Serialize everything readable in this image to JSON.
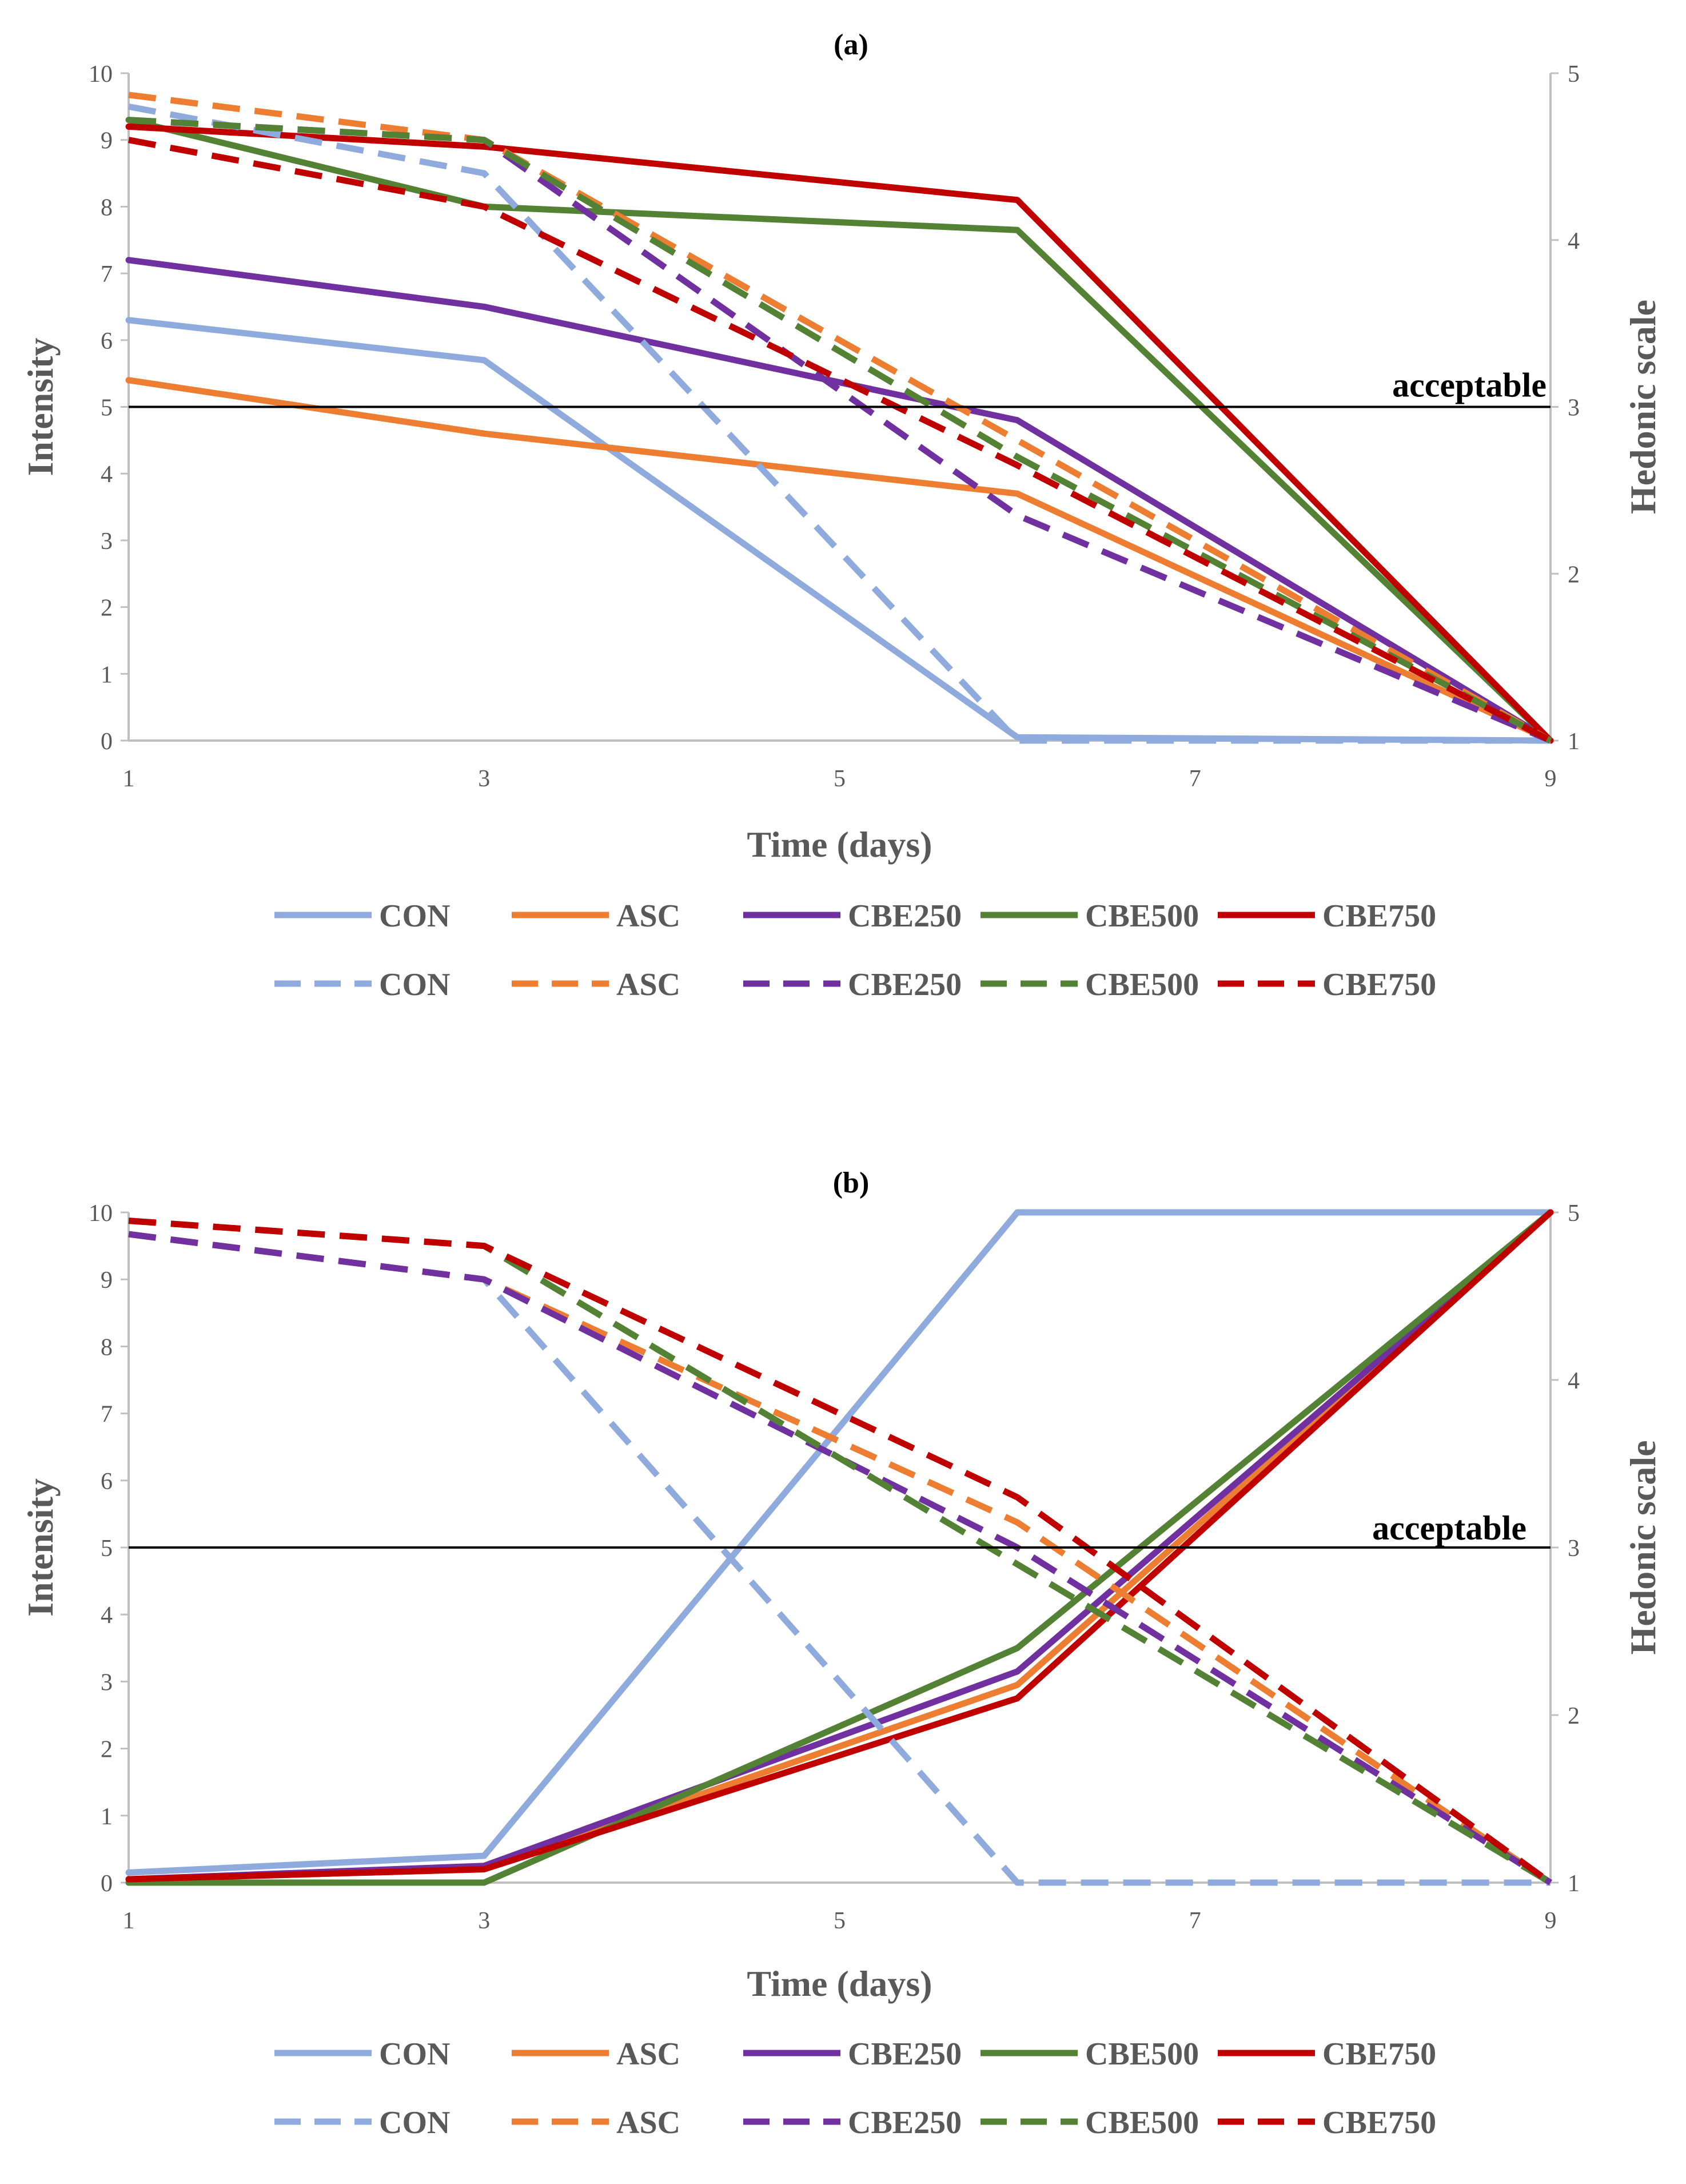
{
  "colors": {
    "CON": "#8faadc",
    "ASC": "#ed7d31",
    "CBE250": "#7030a0",
    "CBE500": "#548235",
    "CBE750": "#c00000"
  },
  "chart_data": [
    {
      "type": "line",
      "title": "(a)",
      "xlabel": "Time (days)",
      "ylabel": "Intensity",
      "y2label": "Hedonic scale",
      "x_ticks": [
        "1",
        "3",
        "5",
        "7",
        "9"
      ],
      "y_ticks": [
        "0",
        "1",
        "2",
        "3",
        "4",
        "5",
        "6",
        "7",
        "8",
        "9",
        "10"
      ],
      "y2_ticks": [
        "1",
        "2",
        "3",
        "4",
        "5"
      ],
      "xlim": [
        1,
        9
      ],
      "ylim": [
        0,
        10
      ],
      "y2lim": [
        1,
        5
      ],
      "threshold": {
        "value": 5,
        "label": "acceptable"
      },
      "x": [
        1,
        3,
        6,
        9
      ],
      "series": [
        {
          "name": "CON",
          "axis": "left",
          "style": "solid",
          "values": [
            6.3,
            5.7,
            0.05,
            0
          ]
        },
        {
          "name": "ASC",
          "axis": "left",
          "style": "solid",
          "values": [
            5.4,
            4.6,
            3.7,
            0
          ]
        },
        {
          "name": "CBE250",
          "axis": "left",
          "style": "solid",
          "values": [
            7.2,
            6.5,
            4.8,
            0
          ]
        },
        {
          "name": "CBE500",
          "axis": "left",
          "style": "solid",
          "values": [
            9.3,
            8.0,
            7.65,
            0
          ]
        },
        {
          "name": "CBE750",
          "axis": "left",
          "style": "solid",
          "values": [
            9.2,
            8.9,
            8.1,
            0
          ]
        },
        {
          "name": "CON",
          "axis": "right",
          "style": "dashed",
          "values": [
            4.8,
            4.4,
            1.0,
            1.0
          ]
        },
        {
          "name": "ASC",
          "axis": "right",
          "style": "dashed",
          "values": [
            4.87,
            4.6,
            2.8,
            1.0
          ]
        },
        {
          "name": "CBE250",
          "axis": "right",
          "style": "dashed",
          "values": [
            4.72,
            4.6,
            2.35,
            1.0
          ]
        },
        {
          "name": "CBE500",
          "axis": "right",
          "style": "dashed",
          "values": [
            4.72,
            4.6,
            2.7,
            1.0
          ]
        },
        {
          "name": "CBE750",
          "axis": "right",
          "style": "dashed",
          "values": [
            4.6,
            4.2,
            2.65,
            1.0
          ]
        }
      ],
      "legend": {
        "solid": [
          "CON",
          "ASC",
          "CBE250",
          "CBE500",
          "CBE750"
        ],
        "dashed": [
          "CON",
          "ASC",
          "CBE250",
          "CBE500",
          "CBE750"
        ]
      }
    },
    {
      "type": "line",
      "title": "(b)",
      "xlabel": "Time (days)",
      "ylabel": "Intensity",
      "y2label": "Hedonic scale",
      "x_ticks": [
        "1",
        "3",
        "5",
        "7",
        "9"
      ],
      "y_ticks": [
        "0",
        "1",
        "2",
        "3",
        "4",
        "5",
        "6",
        "7",
        "8",
        "9",
        "10"
      ],
      "y2_ticks": [
        "1",
        "2",
        "3",
        "4",
        "5"
      ],
      "xlim": [
        1,
        9
      ],
      "ylim": [
        0,
        10
      ],
      "y2lim": [
        1,
        5
      ],
      "threshold": {
        "value": 5,
        "label": "acceptable"
      },
      "x": [
        1,
        3,
        6,
        9
      ],
      "series": [
        {
          "name": "CON",
          "axis": "left",
          "style": "solid",
          "values": [
            0.15,
            0.4,
            10,
            10
          ]
        },
        {
          "name": "ASC",
          "axis": "left",
          "style": "solid",
          "values": [
            0.05,
            0.2,
            2.95,
            10
          ]
        },
        {
          "name": "CBE250",
          "axis": "left",
          "style": "solid",
          "values": [
            0.05,
            0.25,
            3.15,
            10
          ]
        },
        {
          "name": "CBE500",
          "axis": "left",
          "style": "solid",
          "values": [
            0.0,
            0.0,
            3.5,
            10
          ]
        },
        {
          "name": "CBE750",
          "axis": "left",
          "style": "solid",
          "values": [
            0.05,
            0.2,
            2.75,
            10
          ]
        },
        {
          "name": "CON",
          "axis": "right",
          "style": "dashed",
          "values": [
            4.87,
            4.6,
            1.0,
            1.0
          ]
        },
        {
          "name": "ASC",
          "axis": "right",
          "style": "dashed",
          "values": [
            4.87,
            4.6,
            3.15,
            1.0
          ]
        },
        {
          "name": "CBE250",
          "axis": "right",
          "style": "dashed",
          "values": [
            4.87,
            4.6,
            3.0,
            1.0
          ]
        },
        {
          "name": "CBE500",
          "axis": "right",
          "style": "dashed",
          "values": [
            4.95,
            4.8,
            2.9,
            1.0
          ]
        },
        {
          "name": "CBE750",
          "axis": "right",
          "style": "dashed",
          "values": [
            4.95,
            4.8,
            3.3,
            1.0
          ]
        }
      ],
      "legend": {
        "solid": [
          "CON",
          "ASC",
          "CBE250",
          "CBE500",
          "CBE750"
        ],
        "dashed": [
          "CON",
          "ASC",
          "CBE250",
          "CBE500",
          "CBE750"
        ]
      }
    }
  ]
}
